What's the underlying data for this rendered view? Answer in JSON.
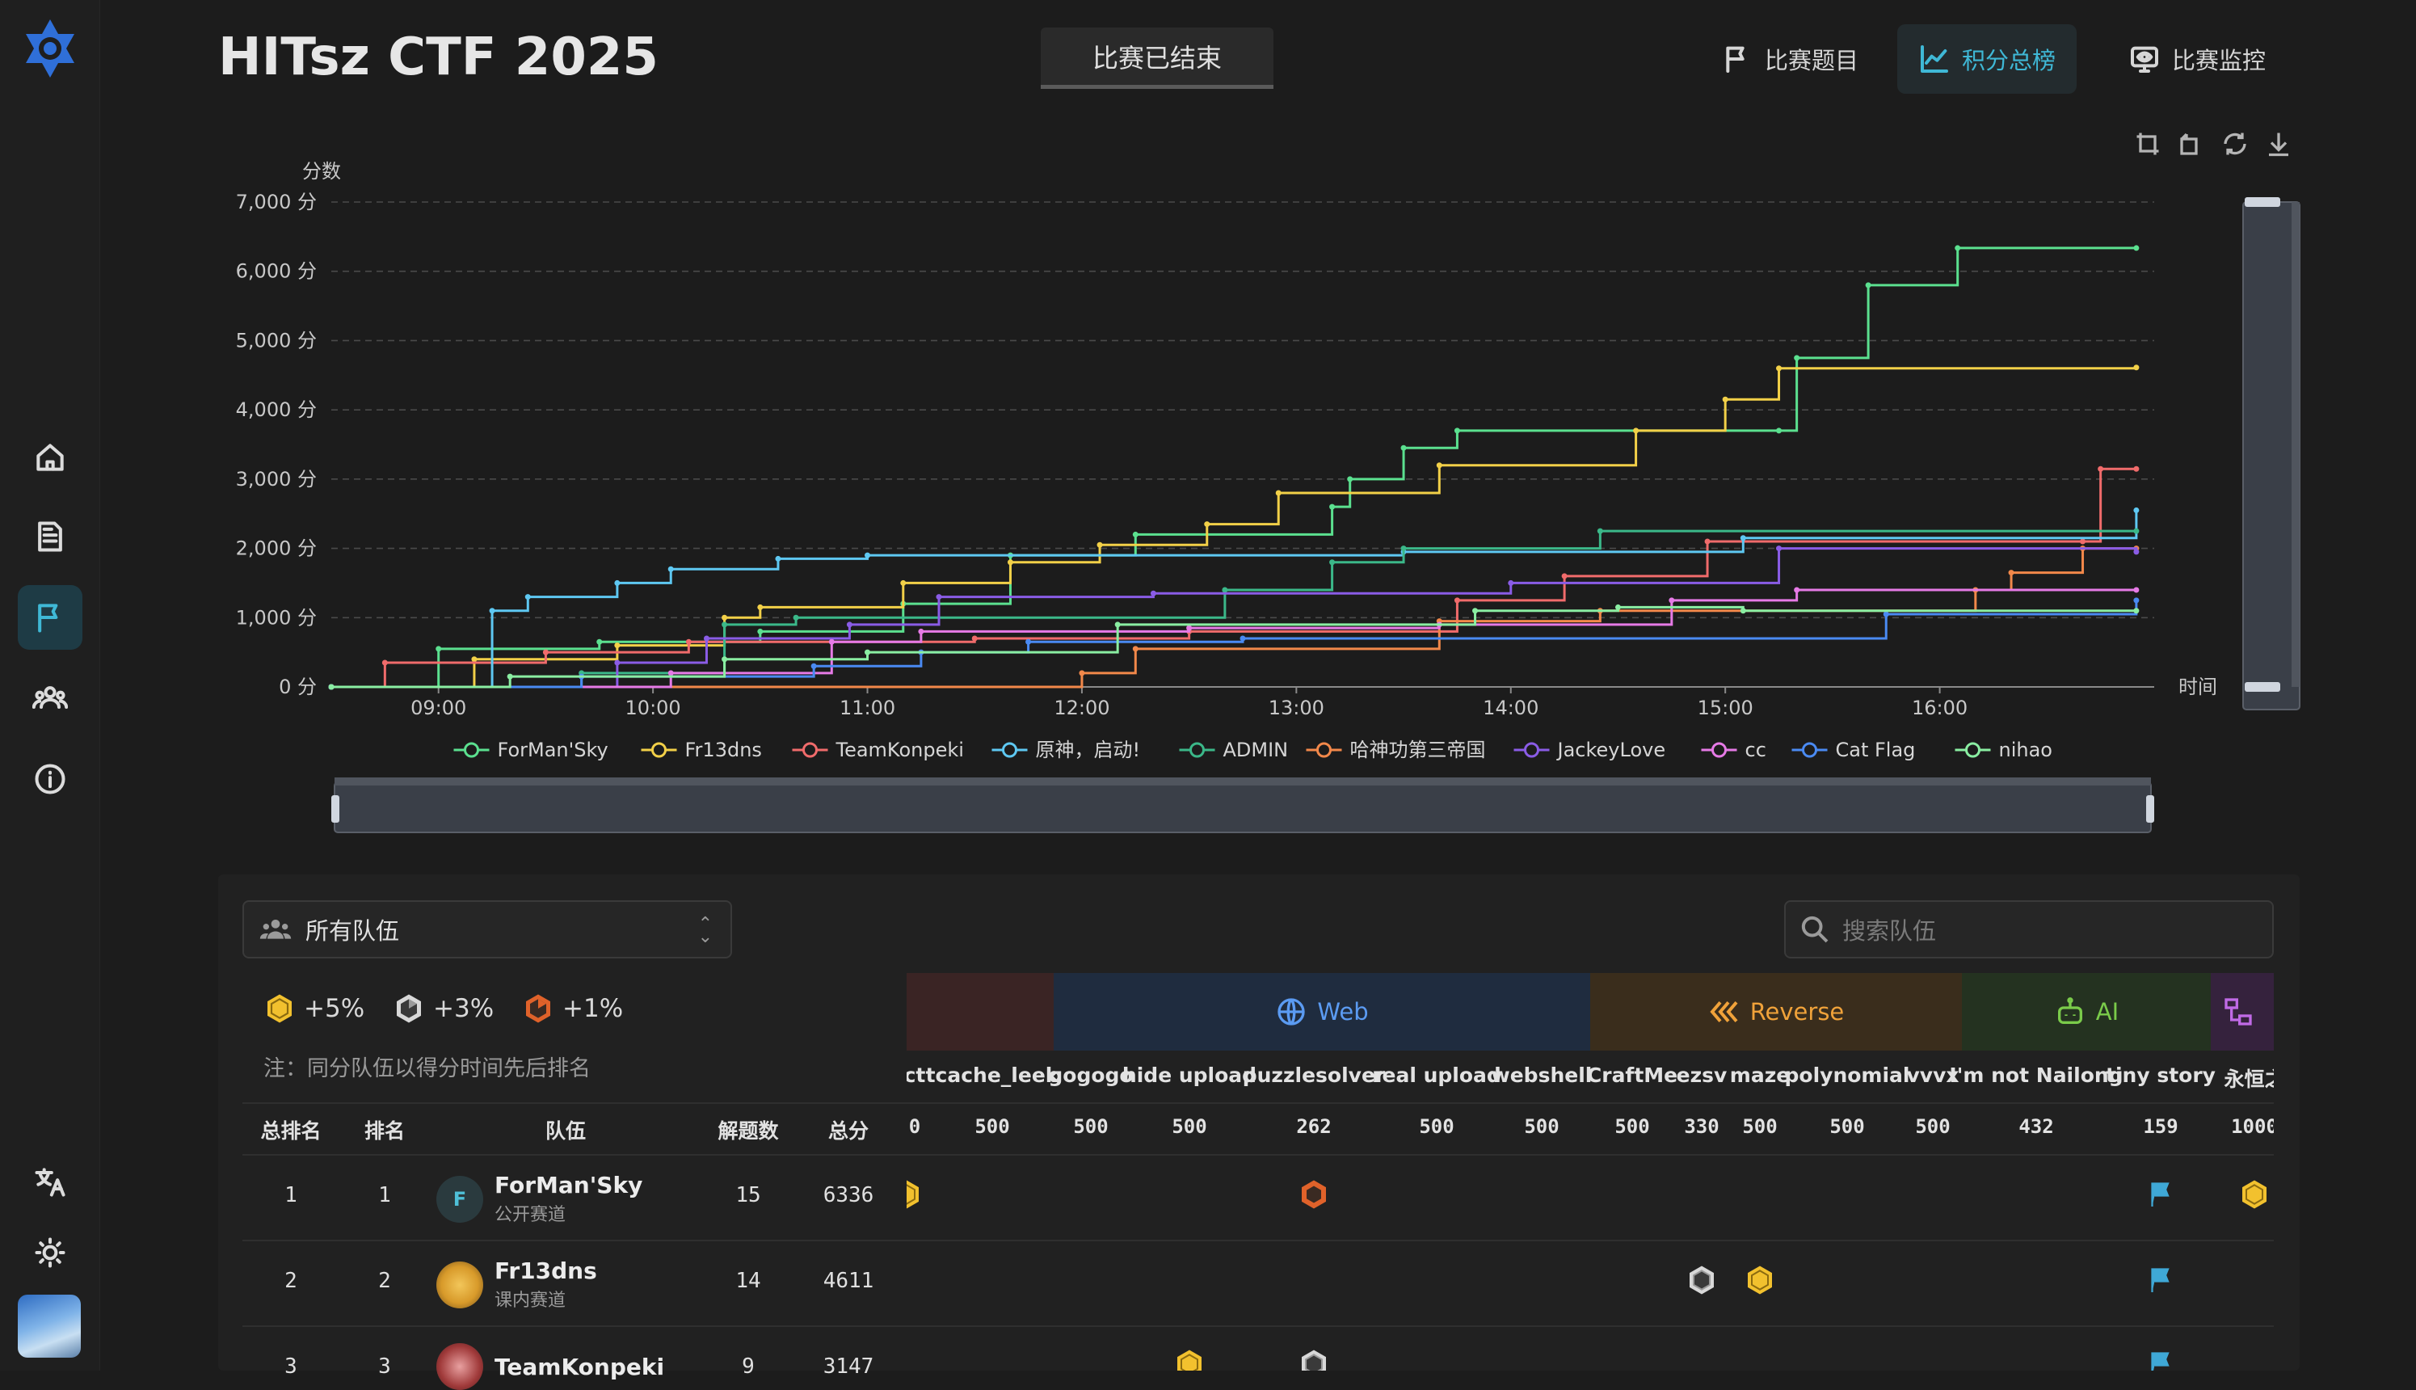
{
  "app": {
    "title": "HITsz CTF 2025",
    "status": "比赛已结束"
  },
  "topnav": [
    {
      "label": "比赛题目"
    },
    {
      "label": "积分总榜"
    },
    {
      "label": "比赛监控"
    }
  ],
  "colors": {
    "accent": "#3fb8d6",
    "gold": "#f2c12e",
    "silver": "#d8d8d8",
    "bronze": "#e0622a"
  },
  "chart_data": {
    "type": "line",
    "ylabel": "分数",
    "xlabel": "时间",
    "ylim": [
      0,
      7000
    ],
    "ytick_labels": [
      "0 分",
      "1,000 分",
      "2,000 分",
      "3,000 分",
      "4,000 分",
      "5,000 分",
      "6,000 分",
      "7,000 分"
    ],
    "xtick_labels": [
      "09:00",
      "10:00",
      "11:00",
      "12:00",
      "13:00",
      "14:00",
      "15:00",
      "16:00"
    ],
    "x_range": [
      "08:30",
      "17:00"
    ],
    "grid": true,
    "legend_position": "bottom",
    "series": [
      {
        "name": "ForMan'Sky",
        "color": "#5be08f",
        "points": [
          [
            "08:30",
            0
          ],
          [
            "09:00",
            550
          ],
          [
            "09:45",
            650
          ],
          [
            "10:30",
            800
          ],
          [
            "11:10",
            1200
          ],
          [
            "11:40",
            1900
          ],
          [
            "12:15",
            2200
          ],
          [
            "13:10",
            2600
          ],
          [
            "13:15",
            3000
          ],
          [
            "13:30",
            3450
          ],
          [
            "13:45",
            3700
          ],
          [
            "15:15",
            3700
          ],
          [
            "15:20",
            4750
          ],
          [
            "15:40",
            5800
          ],
          [
            "16:05",
            6336
          ],
          [
            "16:55",
            6336
          ]
        ]
      },
      {
        "name": "Fr13dns",
        "color": "#f2d048",
        "points": [
          [
            "08:30",
            0
          ],
          [
            "09:10",
            400
          ],
          [
            "09:50",
            600
          ],
          [
            "10:20",
            1000
          ],
          [
            "10:30",
            1150
          ],
          [
            "11:10",
            1500
          ],
          [
            "11:40",
            1800
          ],
          [
            "12:05",
            2050
          ],
          [
            "12:35",
            2350
          ],
          [
            "12:55",
            2800
          ],
          [
            "13:40",
            3200
          ],
          [
            "14:35",
            3700
          ],
          [
            "15:00",
            4150
          ],
          [
            "15:15",
            4600
          ],
          [
            "16:55",
            4611
          ]
        ]
      },
      {
        "name": "TeamKonpeki",
        "color": "#f06b6b",
        "points": [
          [
            "08:30",
            0
          ],
          [
            "08:45",
            350
          ],
          [
            "09:30",
            500
          ],
          [
            "10:10",
            650
          ],
          [
            "11:30",
            700
          ],
          [
            "12:30",
            800
          ],
          [
            "13:45",
            1250
          ],
          [
            "14:15",
            1600
          ],
          [
            "14:55",
            2100
          ],
          [
            "16:40",
            2100
          ],
          [
            "16:45",
            3147
          ],
          [
            "16:55",
            3147
          ]
        ]
      },
      {
        "name": "原神，启动!",
        "color": "#5ec8f2",
        "points": [
          [
            "08:30",
            0
          ],
          [
            "09:15",
            1100
          ],
          [
            "09:25",
            1300
          ],
          [
            "09:50",
            1500
          ],
          [
            "10:05",
            1700
          ],
          [
            "10:35",
            1850
          ],
          [
            "11:00",
            1900
          ],
          [
            "13:30",
            1950
          ],
          [
            "15:05",
            2150
          ],
          [
            "16:55",
            2550
          ]
        ]
      },
      {
        "name": "ADMIN",
        "color": "#3bb889",
        "points": [
          [
            "08:30",
            0
          ],
          [
            "09:40",
            200
          ],
          [
            "10:20",
            900
          ],
          [
            "10:40",
            1000
          ],
          [
            "12:40",
            1400
          ],
          [
            "13:10",
            1800
          ],
          [
            "13:30",
            2000
          ],
          [
            "14:25",
            2250
          ],
          [
            "16:55",
            2250
          ]
        ]
      },
      {
        "name": "哈神功第三帝国",
        "color": "#f2884a",
        "points": [
          [
            "08:30",
            0
          ],
          [
            "12:00",
            200
          ],
          [
            "12:15",
            550
          ],
          [
            "13:40",
            950
          ],
          [
            "14:25",
            1100
          ],
          [
            "16:10",
            1400
          ],
          [
            "16:20",
            1650
          ],
          [
            "16:40",
            2000
          ],
          [
            "16:55",
            2000
          ]
        ]
      },
      {
        "name": "JackeyLove",
        "color": "#8a5ce6",
        "points": [
          [
            "08:30",
            0
          ],
          [
            "09:50",
            350
          ],
          [
            "10:15",
            700
          ],
          [
            "10:55",
            900
          ],
          [
            "11:20",
            1300
          ],
          [
            "12:20",
            1350
          ],
          [
            "14:00",
            1500
          ],
          [
            "15:15",
            2000
          ],
          [
            "16:55",
            1950
          ]
        ]
      },
      {
        "name": "cc",
        "color": "#e67ae6",
        "points": [
          [
            "08:30",
            0
          ],
          [
            "10:05",
            200
          ],
          [
            "10:50",
            650
          ],
          [
            "11:15",
            800
          ],
          [
            "12:30",
            850
          ],
          [
            "13:40",
            900
          ],
          [
            "14:45",
            1250
          ],
          [
            "15:20",
            1400
          ],
          [
            "16:55",
            1400
          ]
        ]
      },
      {
        "name": "Cat Flag",
        "color": "#4a8af2",
        "points": [
          [
            "08:30",
            0
          ],
          [
            "09:40",
            150
          ],
          [
            "10:45",
            300
          ],
          [
            "11:15",
            500
          ],
          [
            "11:45",
            650
          ],
          [
            "12:45",
            700
          ],
          [
            "15:45",
            1050
          ],
          [
            "16:55",
            1250
          ]
        ]
      },
      {
        "name": "nihao",
        "color": "#8aeea2",
        "points": [
          [
            "08:30",
            0
          ],
          [
            "09:20",
            150
          ],
          [
            "10:20",
            400
          ],
          [
            "11:00",
            500
          ],
          [
            "12:10",
            900
          ],
          [
            "13:50",
            1100
          ],
          [
            "14:30",
            1150
          ],
          [
            "15:05",
            1100
          ],
          [
            "16:55",
            1100
          ]
        ]
      }
    ]
  },
  "filter": {
    "team_scope": "所有队伍",
    "search_placeholder": "搜索队伍"
  },
  "bonus": [
    {
      "label": "+5%"
    },
    {
      "label": "+3%"
    },
    {
      "label": "+1%"
    }
  ],
  "note": "注：同分队伍以得分时间先后排名",
  "categories": [
    {
      "label": "Web"
    },
    {
      "label": "Reverse"
    },
    {
      "label": "AI"
    }
  ],
  "challenges": [
    {
      "name": "ct",
      "points": "0"
    },
    {
      "name": "tcache_leek",
      "points": "500"
    },
    {
      "name": "gogogo",
      "points": "500"
    },
    {
      "name": "hide upload",
      "points": "500"
    },
    {
      "name": "puzzlesolver",
      "points": "262"
    },
    {
      "name": "real upload",
      "points": "500"
    },
    {
      "name": "webshell",
      "points": "500"
    },
    {
      "name": "CraftMe",
      "points": "500"
    },
    {
      "name": "ezsv",
      "points": "330"
    },
    {
      "name": "maze",
      "points": "500"
    },
    {
      "name": "polynomial",
      "points": "500"
    },
    {
      "name": "vvvx",
      "points": "500"
    },
    {
      "name": "I'm not Nailong",
      "points": "432"
    },
    {
      "name": "tiny story",
      "points": "159"
    },
    {
      "name": "永恒之",
      "points": "1000"
    }
  ],
  "table_headers": {
    "overall_rank": "总排名",
    "rank": "排名",
    "team": "队伍",
    "solved": "解题数",
    "total": "总分"
  },
  "rows": [
    {
      "overall_rank": "1",
      "rank": "1",
      "team": "ForMan'Sky",
      "initial": "F",
      "track": "公开赛道",
      "solved": "15",
      "total": "6336"
    },
    {
      "overall_rank": "2",
      "rank": "2",
      "team": "Fr13dns",
      "track": "课内赛道",
      "solved": "14",
      "total": "4611"
    },
    {
      "overall_rank": "3",
      "rank": "3",
      "team": "TeamKonpeki",
      "solved": "9",
      "total": "3147"
    }
  ]
}
